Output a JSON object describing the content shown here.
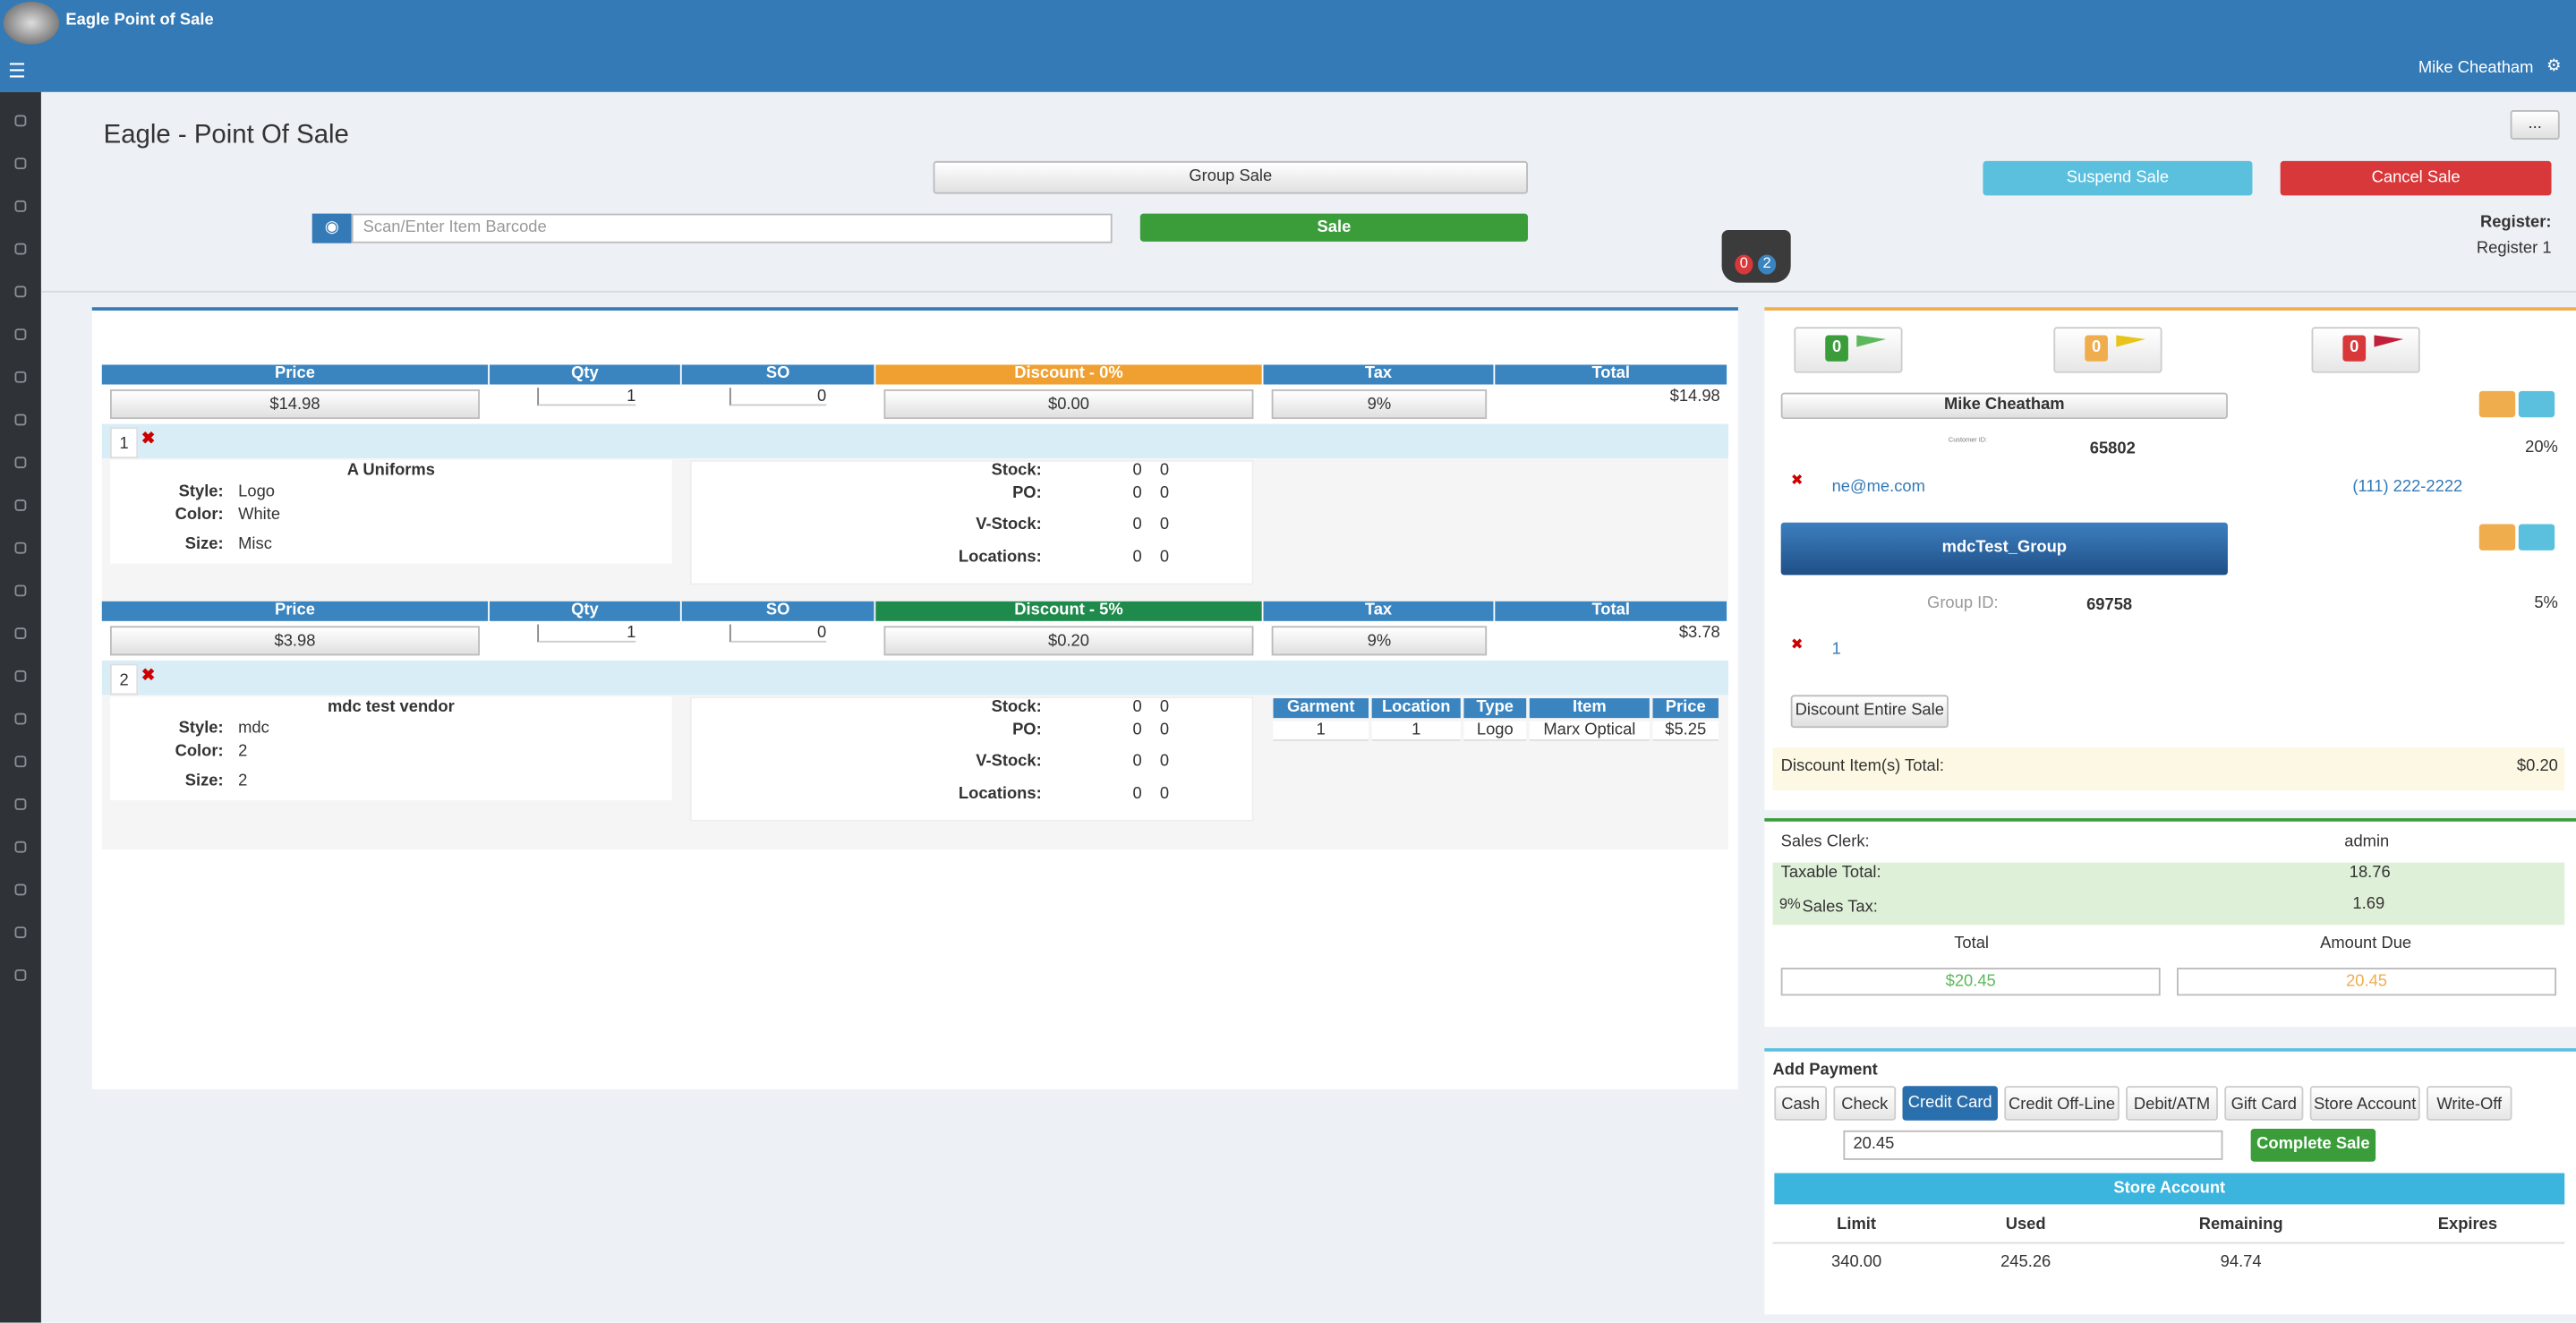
{
  "header": {
    "brand": "Eagle Point of Sale",
    "user": "Mike Cheatham"
  },
  "page": {
    "title": "Eagle - Point Of Sale",
    "more": "...",
    "group_sale": "Group Sale",
    "barcode_placeholder": "Scan/Enter Item Barcode",
    "sale": "Sale",
    "suspend": "Suspend Sale",
    "cancel": "Cancel Sale",
    "register_label": "Register:",
    "register": "Register 1",
    "basket_counts": [
      "0",
      "2"
    ]
  },
  "items": {
    "headers": [
      "Price",
      "Qty",
      "SO",
      "Tax",
      "Total"
    ],
    "rows": [
      {
        "price": "$14.98",
        "qty": "1",
        "so": "0",
        "discount_header": "Discount - 0%",
        "discount": "$0.00",
        "tax": "9%",
        "total": "$14.98",
        "line": "1",
        "name": "A Uniforms",
        "attrs": [
          [
            "Style:",
            "Logo"
          ],
          [
            "Color:",
            "White"
          ],
          [
            "Size:",
            "Misc"
          ]
        ],
        "stock": [
          [
            "Stock:",
            "0",
            "0"
          ],
          [
            "PO:",
            "0",
            "0"
          ],
          [
            "V-Stock:",
            "0",
            "0"
          ],
          [
            "Locations:",
            "0",
            "0"
          ]
        ]
      },
      {
        "price": "$3.98",
        "qty": "1",
        "so": "0",
        "discount_header": "Discount - 5%",
        "discount": "$0.20",
        "tax": "9%",
        "total": "$3.78",
        "line": "2",
        "name": "mdc test vendor",
        "attrs": [
          [
            "Style:",
            "mdc"
          ],
          [
            "Color:",
            "2"
          ],
          [
            "Size:",
            "2"
          ]
        ],
        "stock": [
          [
            "Stock:",
            "0",
            "0"
          ],
          [
            "PO:",
            "0",
            "0"
          ],
          [
            "V-Stock:",
            "0",
            "0"
          ],
          [
            "Locations:",
            "0",
            "0"
          ]
        ],
        "extra": {
          "headers": [
            "Garment",
            "Location",
            "Type",
            "Item",
            "Price"
          ],
          "row": [
            "1",
            "1",
            "Logo",
            "Marx Optical",
            "$5.25"
          ]
        }
      }
    ]
  },
  "customer": {
    "flags": [
      "0",
      "0",
      "0"
    ],
    "name": "Mike Cheatham",
    "id_label": "Customer ID:",
    "id": "65802",
    "discount": "20%",
    "email": "ne@me.com",
    "phone": "(111) 222-2222",
    "group": "mdcTest_Group",
    "group_id_label": "Group ID:",
    "group_id": "69758",
    "group_discount": "5%",
    "group_member": "1",
    "discount_button": "Discount Entire Sale",
    "discount_total_label": "Discount Item(s) Total:",
    "discount_total": "$0.20"
  },
  "totals": {
    "clerk_label": "Sales Clerk:",
    "clerk": "admin",
    "taxable_label": "Taxable Total:",
    "taxable": "18.76",
    "tax_rate": "9%",
    "sales_tax_label": "Sales Tax:",
    "sales_tax": "1.69",
    "total_label": "Total",
    "due_label": "Amount Due",
    "total": "$20.45",
    "due": "20.45"
  },
  "payment": {
    "title": "Add Payment",
    "methods": [
      "Cash",
      "Check",
      "Credit Card",
      "Credit Off-Line",
      "Debit/ATM",
      "Gift Card",
      "Store Account",
      "Write-Off"
    ],
    "amount": "20.45",
    "complete": "Complete Sale",
    "store_account": "Store Account",
    "account_headers": [
      "Limit",
      "Used",
      "Remaining",
      "Expires"
    ],
    "account_values": [
      "340.00",
      "245.26",
      "94.74"
    ]
  }
}
